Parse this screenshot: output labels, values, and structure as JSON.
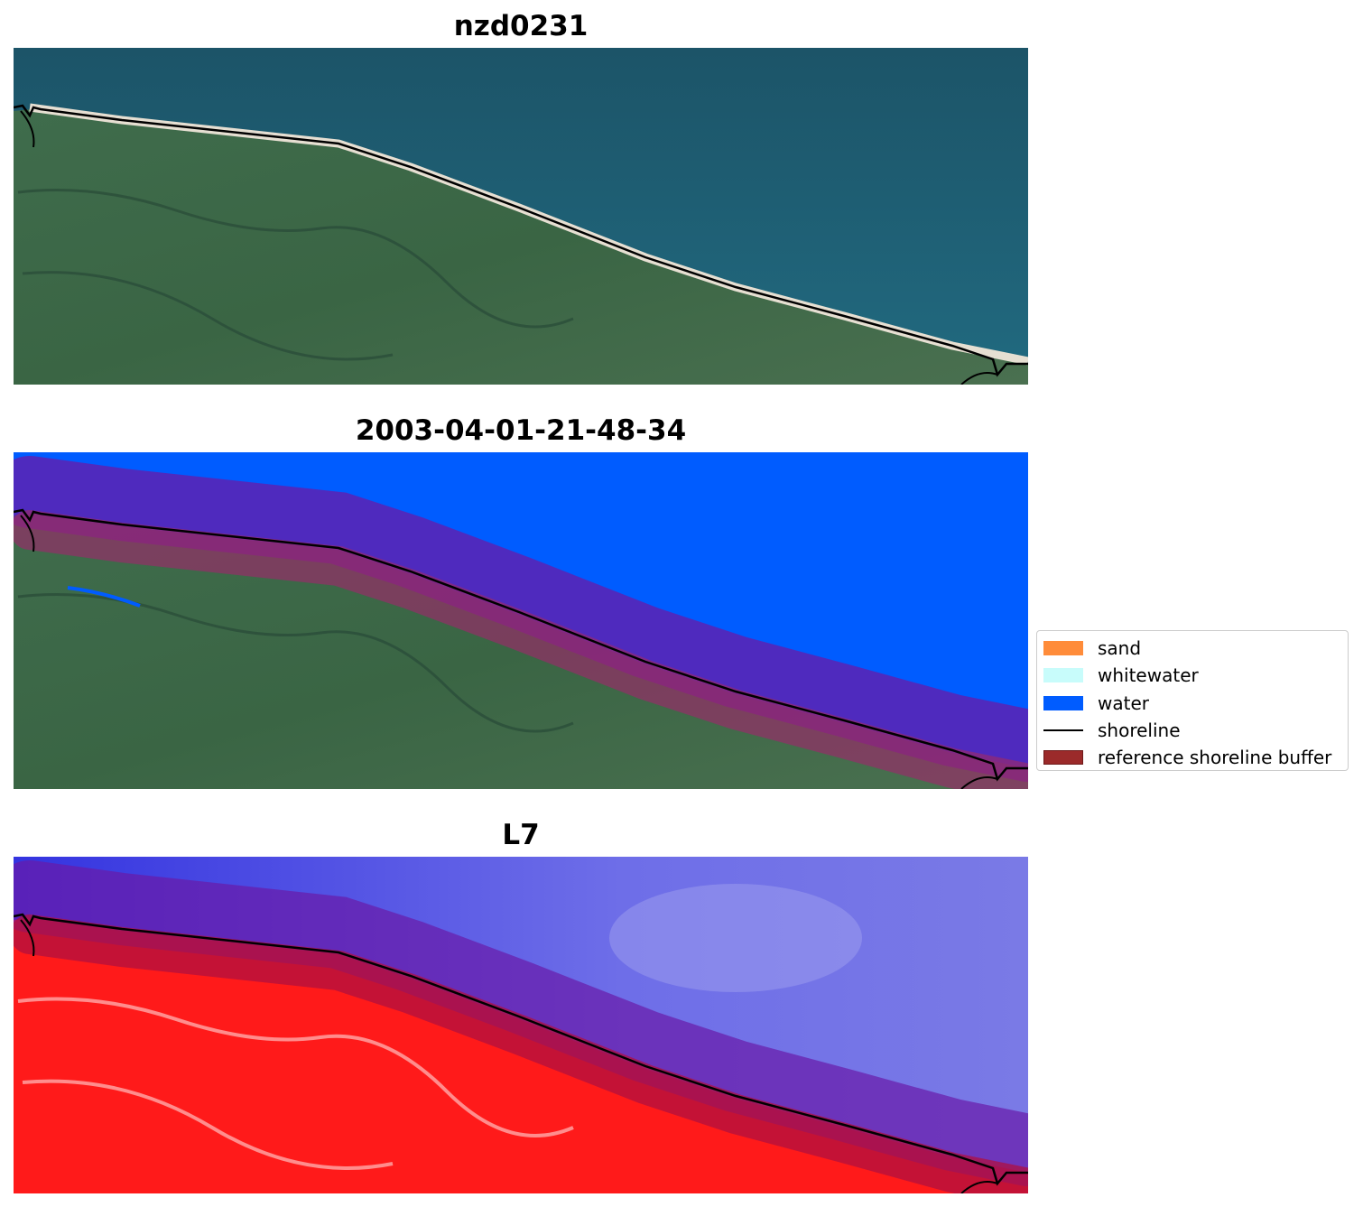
{
  "panels": [
    {
      "title": "nzd0231"
    },
    {
      "title": "2003-04-01-21-48-34"
    },
    {
      "title": "L7"
    }
  ],
  "legend": {
    "items": [
      {
        "label": "sand",
        "color": "#ff8c3a",
        "kind": "patch"
      },
      {
        "label": "whitewater",
        "color": "#c8fcfb",
        "kind": "patch"
      },
      {
        "label": "water",
        "color": "#005cff",
        "kind": "patch"
      },
      {
        "label": "shoreline",
        "color": "#000000",
        "kind": "line"
      },
      {
        "label": "reference shoreline buffer",
        "color": "#9b2a2a",
        "kind": "patch"
      }
    ]
  },
  "colors": {
    "ocean": "#1f5b6e",
    "land": "#3d6b48",
    "beach": "#d8d2c4",
    "water_class": "#005cff",
    "buffer_overlay": "#6a1aa8",
    "ndwi_water": "#3a3ae8",
    "ndwi_land": "#ff1a1a"
  }
}
